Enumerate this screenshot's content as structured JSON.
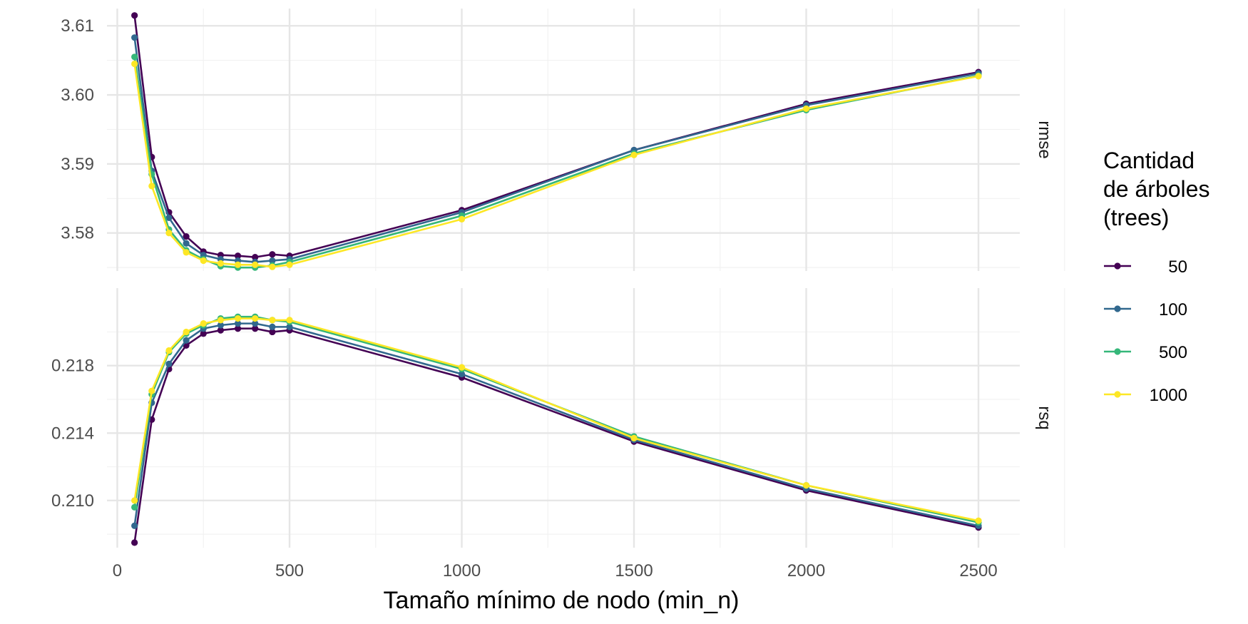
{
  "chart_data": {
    "type": "line",
    "xlabel": "Tamaño mínimo de nodo (min_n)",
    "x_ticks": [
      0,
      500,
      1000,
      1500,
      2000,
      2500
    ],
    "xlim": [
      -30,
      2620
    ],
    "x": [
      50,
      100,
      150,
      200,
      250,
      300,
      350,
      400,
      450,
      500,
      1000,
      1500,
      2000,
      2500
    ],
    "legend": {
      "title_lines": [
        "Cantidad",
        "de árboles",
        "(trees)"
      ],
      "placement": "right",
      "entries": [
        "50",
        "100",
        "500",
        "1000"
      ]
    },
    "colors": [
      "#440154",
      "#31688e",
      "#35b779",
      "#fde725"
    ],
    "grid": true,
    "panels": [
      {
        "label": "rmse",
        "ylim": [
          3.5745,
          3.6125
        ],
        "y_ticks": [
          "3.58",
          "3.59",
          "3.60",
          "3.61"
        ],
        "y_tick_values": [
          3.58,
          3.59,
          3.6,
          3.61
        ],
        "series": [
          {
            "name": "50",
            "values": [
              3.6115,
              3.591,
              3.583,
              3.5795,
              3.5773,
              3.5768,
              3.5767,
              3.5765,
              3.5769,
              3.5767,
              3.5833,
              3.592,
              3.5987,
              3.6033
            ]
          },
          {
            "name": "100",
            "values": [
              3.6083,
              3.589,
              3.5822,
              3.5785,
              3.5768,
              3.5762,
              3.576,
              3.5758,
              3.576,
              3.5762,
              3.583,
              3.592,
              3.5985,
              3.6031
            ]
          },
          {
            "name": "500",
            "values": [
              3.6055,
              3.5885,
              3.5805,
              3.5775,
              3.5762,
              3.5752,
              3.575,
              3.575,
              3.5753,
              3.5758,
              3.5825,
              3.5915,
              3.5978,
              3.6028
            ]
          },
          {
            "name": "1000",
            "values": [
              3.6045,
              3.5868,
              3.58,
              3.5772,
              3.576,
              3.5756,
              3.5754,
              3.5754,
              3.5751,
              3.5754,
              3.582,
              3.5913,
              3.598,
              3.6027
            ]
          }
        ]
      },
      {
        "label": "rsq",
        "ylim": [
          0.2072,
          0.2226
        ],
        "y_ticks": [
          "0.210",
          "0.214",
          "0.218"
        ],
        "y_tick_values": [
          0.21,
          0.214,
          0.218
        ],
        "series": [
          {
            "name": "50",
            "values": [
              0.2075,
              0.2148,
              0.2178,
              0.2192,
              0.2199,
              0.2201,
              0.2202,
              0.2202,
              0.22,
              0.2201,
              0.2173,
              0.2135,
              0.2106,
              0.2084
            ]
          },
          {
            "name": "100",
            "values": [
              0.2085,
              0.2158,
              0.2181,
              0.2195,
              0.2202,
              0.2204,
              0.2205,
              0.2205,
              0.2203,
              0.2203,
              0.2175,
              0.2136,
              0.2107,
              0.2085
            ]
          },
          {
            "name": "500",
            "values": [
              0.2096,
              0.2163,
              0.2188,
              0.2199,
              0.2204,
              0.2208,
              0.2209,
              0.2209,
              0.2207,
              0.2206,
              0.2178,
              0.2138,
              0.2109,
              0.2087
            ]
          },
          {
            "name": "1000",
            "values": [
              0.21,
              0.2165,
              0.2189,
              0.22,
              0.2205,
              0.2207,
              0.2208,
              0.2208,
              0.2207,
              0.2207,
              0.2179,
              0.2137,
              0.2109,
              0.2088
            ]
          }
        ]
      }
    ]
  }
}
